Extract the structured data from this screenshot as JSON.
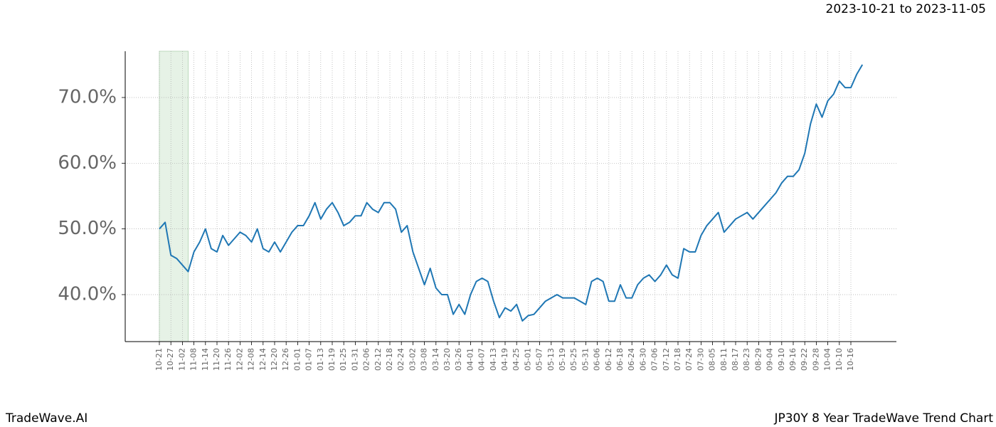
{
  "chart_data": {
    "type": "line",
    "title": "2023-10-21 to 2023-11-05",
    "footer_left": "TradeWave.AI",
    "footer_right": "JP30Y 8 Year TradeWave Trend Chart",
    "categories": [
      "10-21",
      null,
      "10-27",
      null,
      "11-02",
      null,
      "11-08",
      null,
      "11-14",
      null,
      "11-20",
      null,
      "11-26",
      null,
      "12-02",
      null,
      "12-08",
      null,
      "12-14",
      null,
      "12-20",
      null,
      "12-26",
      null,
      "01-01",
      null,
      "01-07",
      null,
      "01-13",
      null,
      "01-19",
      null,
      "01-25",
      null,
      "01-31",
      null,
      "02-06",
      null,
      "02-12",
      null,
      "02-18",
      null,
      "02-24",
      null,
      "03-02",
      null,
      "03-08",
      null,
      "03-14",
      null,
      "03-20",
      null,
      "03-26",
      null,
      "04-01",
      null,
      "04-07",
      null,
      "04-13",
      null,
      "04-19",
      null,
      "04-25",
      null,
      "05-01",
      null,
      "05-07",
      null,
      "05-13",
      null,
      "05-19",
      null,
      "05-25",
      null,
      "05-31",
      null,
      "06-06",
      null,
      "06-12",
      null,
      "06-18",
      null,
      "06-24",
      null,
      "06-30",
      null,
      "07-06",
      null,
      "07-12",
      null,
      "07-18",
      null,
      "07-24",
      null,
      "07-30",
      null,
      "08-05",
      null,
      "08-11",
      null,
      "08-17",
      null,
      "08-23",
      null,
      "08-29",
      null,
      "09-04",
      null,
      "09-10",
      null,
      "09-16",
      null,
      "09-22",
      null,
      "09-28",
      null,
      "10-04",
      null,
      "10-10",
      null,
      "10-16",
      null,
      null
    ],
    "values": [
      50,
      51,
      46,
      45.5,
      44.5,
      43.5,
      46.5,
      48,
      50,
      47,
      46.5,
      49,
      47.5,
      48.5,
      49.5,
      49,
      48,
      50,
      47,
      46.5,
      48,
      46.5,
      48,
      49.5,
      50.5,
      50.5,
      52,
      54,
      51.5,
      53,
      54,
      52.5,
      50.5,
      51,
      52,
      52,
      54,
      53,
      52.5,
      54,
      54,
      53,
      49.5,
      50.5,
      46.5,
      44,
      41.5,
      44,
      41,
      40,
      40,
      37,
      38.5,
      37,
      40,
      42,
      42.5,
      42,
      39,
      36.5,
      38,
      37.5,
      38.5,
      36,
      36.8,
      37,
      38,
      39,
      39.5,
      40,
      39.5,
      39.5,
      39.5,
      39,
      38.5,
      42,
      42.5,
      42,
      39,
      39,
      41.5,
      39.5,
      39.5,
      41.5,
      42.5,
      43,
      42,
      43,
      44.5,
      43,
      42.5,
      47,
      46.5,
      46.5,
      49,
      50.5,
      51.5,
      52.5,
      49.5,
      50.5,
      51.5,
      52,
      52.5,
      51.5,
      52.5,
      53.5,
      54.5,
      55.5,
      57,
      58,
      58,
      59,
      61.5,
      66,
      69,
      67,
      69.5,
      70.5,
      72.5,
      71.5,
      71.5,
      73.5,
      75
    ],
    "color": "#1f77b4",
    "highlight": [
      0,
      5
    ],
    "highlight_color": "#e6f2e6",
    "ylim": [
      32.85,
      77.04
    ],
    "yticks": [
      {
        "value": 40,
        "label": "40.0%"
      },
      {
        "value": 50,
        "label": "50.0%"
      },
      {
        "value": 60,
        "label": "60.0%"
      },
      {
        "value": 70,
        "label": "70.0%"
      }
    ],
    "grid": true
  }
}
